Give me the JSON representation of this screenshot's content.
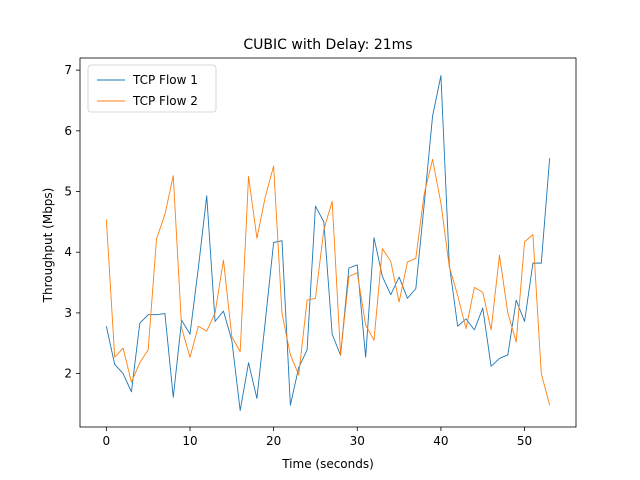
{
  "chart_data": {
    "type": "line",
    "title": "CUBIC with Delay: 21ms",
    "xlabel": "Time (seconds)",
    "ylabel": "Throughput (Mbps)",
    "xlim": [
      -3.15,
      56.15
    ],
    "ylim": [
      1.12,
      7.2
    ],
    "xticks": [
      0,
      10,
      20,
      30,
      40,
      50
    ],
    "yticks": [
      2,
      3,
      4,
      5,
      6,
      7
    ],
    "grid": false,
    "legend_position": "upper-left",
    "x": [
      0,
      1,
      2,
      3,
      4,
      5,
      6,
      7,
      8,
      9,
      10,
      11,
      12,
      13,
      14,
      15,
      16,
      17,
      18,
      19,
      20,
      21,
      22,
      23,
      24,
      25,
      26,
      27,
      28,
      29,
      30,
      31,
      32,
      33,
      34,
      35,
      36,
      37,
      38,
      39,
      40,
      41,
      42,
      43,
      44,
      45,
      46,
      47,
      48,
      49,
      50,
      51,
      52,
      53
    ],
    "series": [
      {
        "name": "TCP Flow 1",
        "color": "#1f77b4",
        "values": [
          2.78,
          2.15,
          2.0,
          1.7,
          2.83,
          2.97,
          2.97,
          2.99,
          1.61,
          2.88,
          2.65,
          3.74,
          4.93,
          2.86,
          3.03,
          2.55,
          1.39,
          2.18,
          1.59,
          2.86,
          4.16,
          4.19,
          1.48,
          2.1,
          2.39,
          4.76,
          4.5,
          2.65,
          2.3,
          3.74,
          3.79,
          2.27,
          4.24,
          3.6,
          3.3,
          3.59,
          3.24,
          3.4,
          4.79,
          6.24,
          6.91,
          3.8,
          2.78,
          2.9,
          2.72,
          3.08,
          2.12,
          2.25,
          2.31,
          3.21,
          2.86,
          3.82,
          3.82,
          5.55
        ]
      },
      {
        "name": "TCP Flow 2",
        "color": "#ff7f0e",
        "values": [
          4.54,
          2.27,
          2.42,
          1.86,
          2.18,
          2.39,
          4.22,
          4.62,
          5.26,
          2.75,
          2.27,
          2.78,
          2.7,
          3.0,
          3.87,
          2.61,
          2.36,
          5.25,
          4.23,
          4.91,
          5.42,
          2.99,
          2.31,
          1.98,
          3.21,
          3.24,
          4.37,
          4.84,
          2.31,
          3.6,
          3.66,
          2.8,
          2.55,
          4.06,
          3.85,
          3.18,
          3.84,
          3.9,
          4.96,
          5.53,
          4.81,
          3.76,
          3.29,
          2.74,
          3.42,
          3.34,
          2.72,
          3.95,
          3.0,
          2.52,
          4.17,
          4.29,
          2.0,
          1.48
        ]
      }
    ]
  }
}
